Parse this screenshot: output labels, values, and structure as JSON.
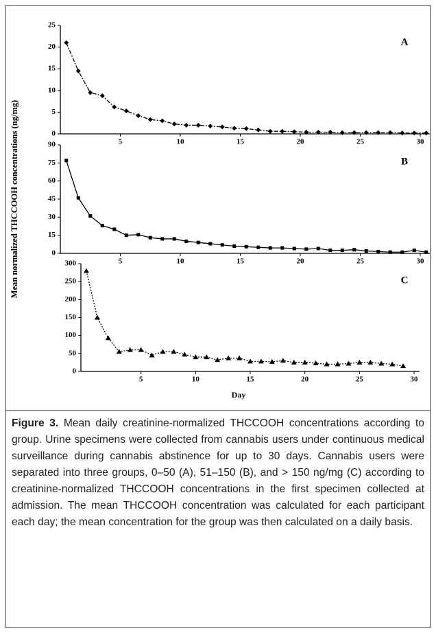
{
  "ylabel": "Mean normalized THCCOOH concentrations (ng/mg)",
  "xlabel": "Day",
  "caption": {
    "label": "Figure 3.",
    "text": "Mean daily creatinine-normalized THCCOOH concentrations according to group. Urine specimens were collected from cannabis users under continuous medical surveillance during cannabis abstinence for up to 30 days. Cannabis users were separated into three groups, 0–50 (A), 51–150 (B), and > 150 ng/mg (C) according to creatinine-normalized THCCOOH concentrations in the first specimen collected at admission. The mean THCCOOH concentration was calculated for each participant each day; the mean concentration for the group was then calculated on a daily basis."
  },
  "chart_data": [
    {
      "type": "line",
      "label": "A",
      "marker": "diamond",
      "dash": "dash-dot",
      "color": "#000000",
      "x": [
        0.5,
        1.5,
        2.5,
        3.5,
        4.5,
        5.5,
        6.5,
        7.5,
        8.5,
        9.5,
        10.5,
        11.5,
        12.5,
        13.5,
        14.5,
        15.5,
        16.5,
        17.5,
        18.5,
        19.5,
        20.5,
        21.5,
        22.5,
        23.5,
        24.5,
        25.5,
        26.5,
        27.5,
        28.5,
        29.5,
        30.5
      ],
      "values": [
        21,
        14.5,
        9.5,
        8.8,
        6.2,
        5.3,
        4.2,
        3.3,
        3.0,
        2.3,
        2.0,
        2.0,
        1.8,
        1.6,
        1.3,
        1.2,
        0.9,
        0.6,
        0.6,
        0.5,
        0.4,
        0.4,
        0.4,
        0.3,
        0.3,
        0.3,
        0.3,
        0.3,
        0.2,
        0.2,
        0.2
      ],
      "xlim": [
        0,
        30.8
      ],
      "xticks": [
        5,
        10,
        15,
        20,
        25,
        30
      ],
      "ylim": [
        0,
        25
      ],
      "yticks": [
        0,
        5,
        10,
        15,
        20,
        25
      ]
    },
    {
      "type": "line",
      "label": "B",
      "marker": "square",
      "dash": "solid",
      "color": "#000000",
      "x": [
        0.5,
        1.5,
        2.5,
        3.5,
        4.5,
        5.5,
        6.5,
        7.5,
        8.5,
        9.5,
        10.5,
        11.5,
        12.5,
        13.5,
        14.5,
        15.5,
        16.5,
        17.5,
        18.5,
        19.5,
        20.5,
        21.5,
        22.5,
        23.5,
        24.5,
        25.5,
        26.5,
        27.5,
        28.5,
        29.5,
        30.5
      ],
      "values": [
        77,
        46,
        31,
        23,
        20,
        15,
        15.5,
        13,
        12,
        12,
        10,
        9,
        8,
        7,
        6,
        5.5,
        5,
        4.5,
        4.5,
        4,
        3.5,
        4,
        2.5,
        2.5,
        3,
        2,
        1.5,
        1,
        1,
        2.5,
        1
      ],
      "xlim": [
        0,
        30.8
      ],
      "xticks": [
        5,
        10,
        15,
        20,
        25,
        30
      ],
      "ylim": [
        0,
        90
      ],
      "yticks": [
        0,
        15,
        30,
        45,
        60,
        75,
        90
      ]
    },
    {
      "type": "line",
      "label": "C",
      "marker": "triangle",
      "dash": "dotted",
      "color": "#000000",
      "x": [
        0,
        1,
        2,
        3,
        4,
        5,
        6,
        7,
        8,
        9,
        10,
        11,
        12,
        13,
        14,
        15,
        16,
        17,
        18,
        19,
        20,
        21,
        22,
        23,
        24,
        25,
        26,
        27,
        28,
        29
      ],
      "values": [
        280,
        150,
        93,
        55,
        60,
        60,
        45,
        55,
        55,
        47,
        40,
        40,
        32,
        37,
        37,
        28,
        28,
        27,
        30,
        25,
        25,
        23,
        20,
        20,
        22,
        25,
        25,
        22,
        20,
        15
      ],
      "xlim": [
        -0.5,
        30.5
      ],
      "xticks": [
        5,
        10,
        15,
        20,
        25,
        30
      ],
      "ylim": [
        0,
        300
      ],
      "yticks": [
        0,
        50,
        100,
        150,
        200,
        250,
        300
      ]
    }
  ]
}
